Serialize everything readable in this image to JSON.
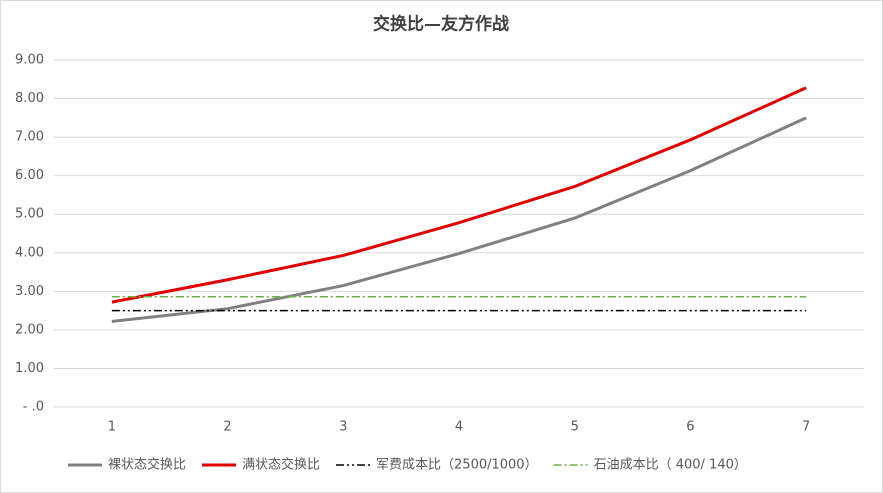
{
  "chart_data": {
    "type": "line",
    "title": "交换比—友方作战",
    "categories": [
      "1",
      "2",
      "3",
      "4",
      "5",
      "6",
      "7"
    ],
    "series": [
      {
        "name": "裸状态交换比",
        "color": "#808080",
        "style": "solid",
        "values": [
          2.22,
          2.55,
          3.15,
          3.98,
          4.9,
          6.13,
          7.5
        ]
      },
      {
        "name": "满状态交换比",
        "color": "#e00000",
        "style": "solid",
        "values": [
          2.72,
          3.3,
          3.93,
          4.78,
          5.72,
          6.93,
          8.28
        ]
      },
      {
        "name": "军费成本比（2500/1000）",
        "color": "#000000",
        "style": "dash-dot-dot",
        "values": [
          2.5,
          2.5,
          2.5,
          2.5,
          2.5,
          2.5,
          2.5
        ]
      },
      {
        "name": "石油成本比（ 400/ 140）",
        "color": "#70ad47",
        "style": "dash-dot",
        "values": [
          2.86,
          2.86,
          2.86,
          2.86,
          2.86,
          2.86,
          2.86
        ]
      }
    ],
    "ylim": [
      0,
      9
    ],
    "yticks": [
      {
        "value": 0,
        "label": "- .0"
      },
      {
        "value": 1,
        "label": "1.00"
      },
      {
        "value": 2,
        "label": "2.00"
      },
      {
        "value": 3,
        "label": "3.00"
      },
      {
        "value": 4,
        "label": "4.00"
      },
      {
        "value": 5,
        "label": "5.00"
      },
      {
        "value": 6,
        "label": "6.00"
      },
      {
        "value": 7,
        "label": "7.00"
      },
      {
        "value": 8,
        "label": "8.00"
      },
      {
        "value": 9,
        "label": "9.00"
      }
    ],
    "grid": true,
    "legend": "bottom"
  }
}
